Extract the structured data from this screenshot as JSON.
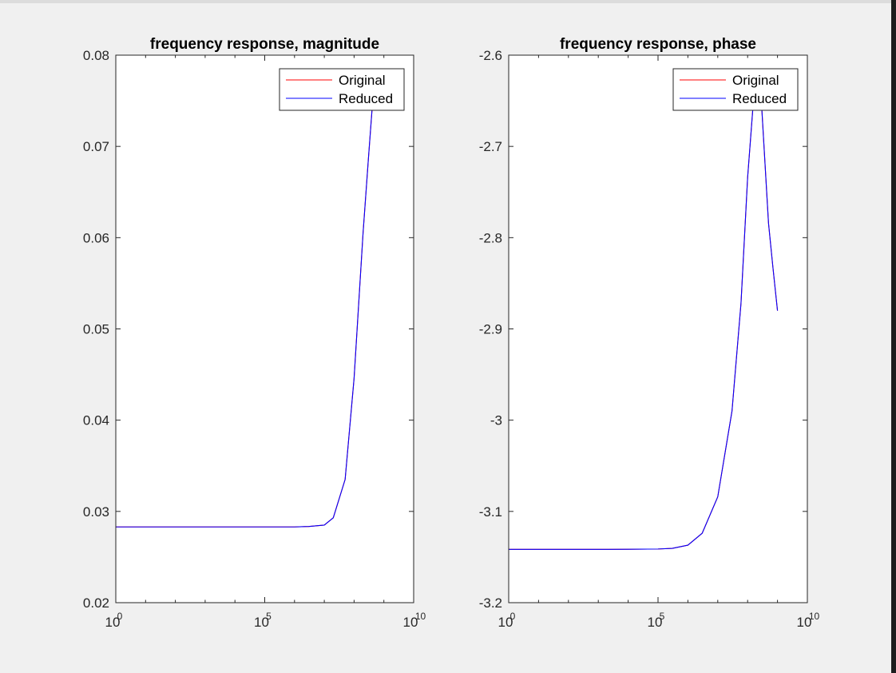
{
  "colors": {
    "background": "#f0f0f0",
    "axes_background": "#ffffff",
    "original": "#ff0000",
    "reduced": "#0000ff"
  },
  "chart_data": [
    {
      "type": "line",
      "title": "frequency response, magnitude",
      "xscale": "log",
      "xlim": [
        1,
        10000000000
      ],
      "ylim": [
        0.02,
        0.08
      ],
      "xticks": [
        {
          "base": "10",
          "exp": "0"
        },
        {
          "base": "10",
          "exp": "5"
        },
        {
          "base": "10",
          "exp": "10"
        }
      ],
      "yticks": [
        "0.02",
        "0.03",
        "0.04",
        "0.05",
        "0.06",
        "0.07",
        "0.08"
      ],
      "legend": {
        "position": "top-right",
        "entries": [
          "Original",
          "Reduced"
        ]
      },
      "series": [
        {
          "name": "Original",
          "x": [
            1,
            10,
            100,
            1000,
            10000,
            100000,
            1000000,
            3000000,
            10000000,
            20000000,
            50000000,
            100000000,
            200000000,
            300000000,
            400000000
          ],
          "y": [
            0.0283,
            0.0283,
            0.0283,
            0.0283,
            0.0283,
            0.0283,
            0.0283,
            0.02835,
            0.0285,
            0.0293,
            0.0335,
            0.0446,
            0.0605,
            0.0685,
            0.074
          ]
        },
        {
          "name": "Reduced",
          "x": [
            1,
            10,
            100,
            1000,
            10000,
            100000,
            1000000,
            3000000,
            10000000,
            20000000,
            50000000,
            100000000,
            200000000,
            300000000,
            400000000
          ],
          "y": [
            0.0283,
            0.0283,
            0.0283,
            0.0283,
            0.0283,
            0.0283,
            0.0283,
            0.02835,
            0.0285,
            0.0293,
            0.0335,
            0.0446,
            0.0605,
            0.0685,
            0.074
          ]
        }
      ]
    },
    {
      "type": "line",
      "title": "frequency response, phase",
      "xscale": "log",
      "xlim": [
        1,
        10000000000
      ],
      "ylim": [
        -3.2,
        -2.6
      ],
      "xticks": [
        {
          "base": "10",
          "exp": "0"
        },
        {
          "base": "10",
          "exp": "5"
        },
        {
          "base": "10",
          "exp": "10"
        }
      ],
      "yticks": [
        "-3.2",
        "-3.1",
        "-3",
        "-2.9",
        "-2.8",
        "-2.7",
        "-2.6"
      ],
      "legend": {
        "position": "top-right",
        "entries": [
          "Original",
          "Reduced"
        ]
      },
      "series": [
        {
          "name": "Original",
          "x": [
            1,
            10,
            100,
            1000,
            10000,
            100000,
            300000,
            1000000,
            3000000,
            10000000,
            30000000,
            60000000,
            100000000,
            150000000,
            200000000,
            300000000,
            500000000,
            700000000,
            1000000000
          ],
          "y": [
            -3.1416,
            -3.1416,
            -3.1416,
            -3.1416,
            -3.1415,
            -3.1412,
            -3.1405,
            -3.137,
            -3.124,
            -3.084,
            -2.99,
            -2.872,
            -2.734,
            -2.658,
            -2.64,
            -2.66,
            -2.784,
            -2.832,
            -2.88
          ]
        },
        {
          "name": "Reduced",
          "x": [
            1,
            10,
            100,
            1000,
            10000,
            100000,
            300000,
            1000000,
            3000000,
            10000000,
            30000000,
            60000000,
            100000000,
            150000000,
            200000000,
            300000000,
            500000000,
            700000000,
            1000000000
          ],
          "y": [
            -3.1416,
            -3.1416,
            -3.1416,
            -3.1416,
            -3.1415,
            -3.1412,
            -3.1405,
            -3.137,
            -3.124,
            -3.084,
            -2.99,
            -2.872,
            -2.734,
            -2.658,
            -2.64,
            -2.66,
            -2.784,
            -2.832,
            -2.88
          ]
        }
      ]
    }
  ]
}
